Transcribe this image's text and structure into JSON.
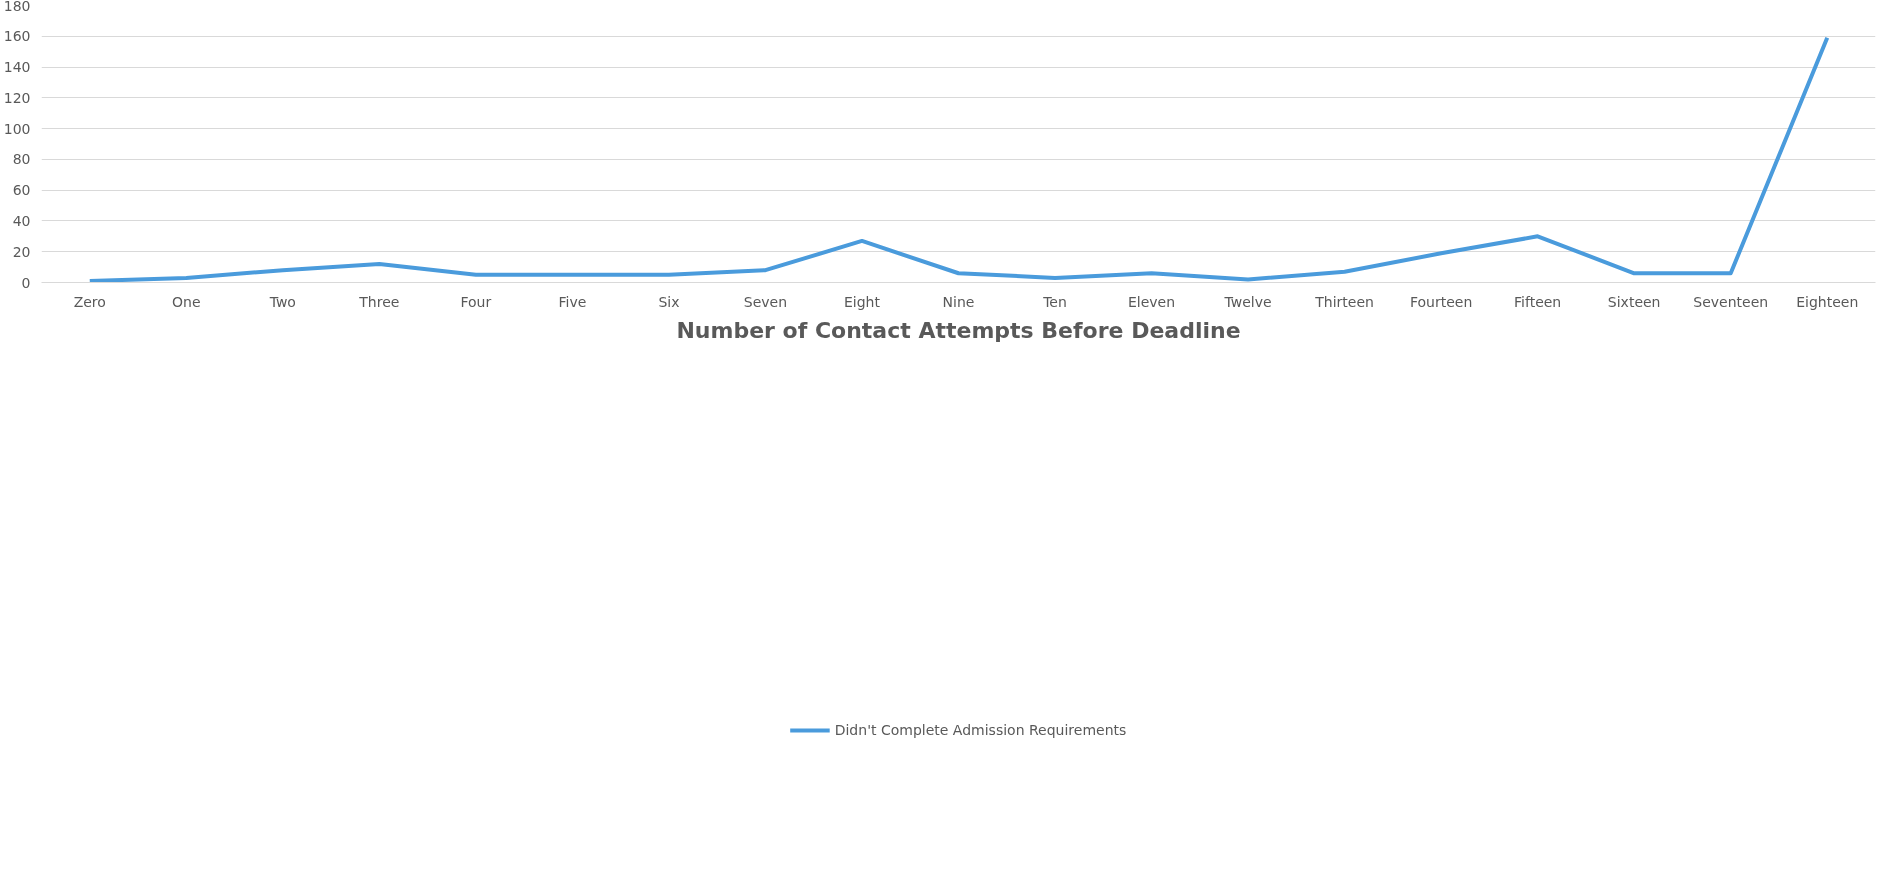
{
  "chart_data": {
    "type": "line",
    "xlabel": "Number of Contact Attempts Before Deadline",
    "categories": [
      "Zero",
      "One",
      "Two",
      "Three",
      "Four",
      "Five",
      "Six",
      "Seven",
      "Eight",
      "Nine",
      "Ten",
      "Eleven",
      "Twelve",
      "Thirteen",
      "Fourteen",
      "Fifteen",
      "Sixteen",
      "Seventeen",
      "Eighteen"
    ],
    "series": [
      {
        "name": "Didn't Complete Admission Requirements",
        "color": "#4a9bdc",
        "values": [
          1,
          3,
          8,
          12,
          5,
          5,
          5,
          8,
          27,
          6,
          3,
          6,
          2,
          7,
          19,
          30,
          6,
          6,
          159
        ]
      }
    ],
    "ylim": [
      0,
      180
    ],
    "yticks": [
      0,
      20,
      40,
      60,
      80,
      100,
      120,
      140,
      160,
      180
    ],
    "grid": "y",
    "legend": "bottom",
    "marker": "none",
    "line_style": "solid"
  }
}
